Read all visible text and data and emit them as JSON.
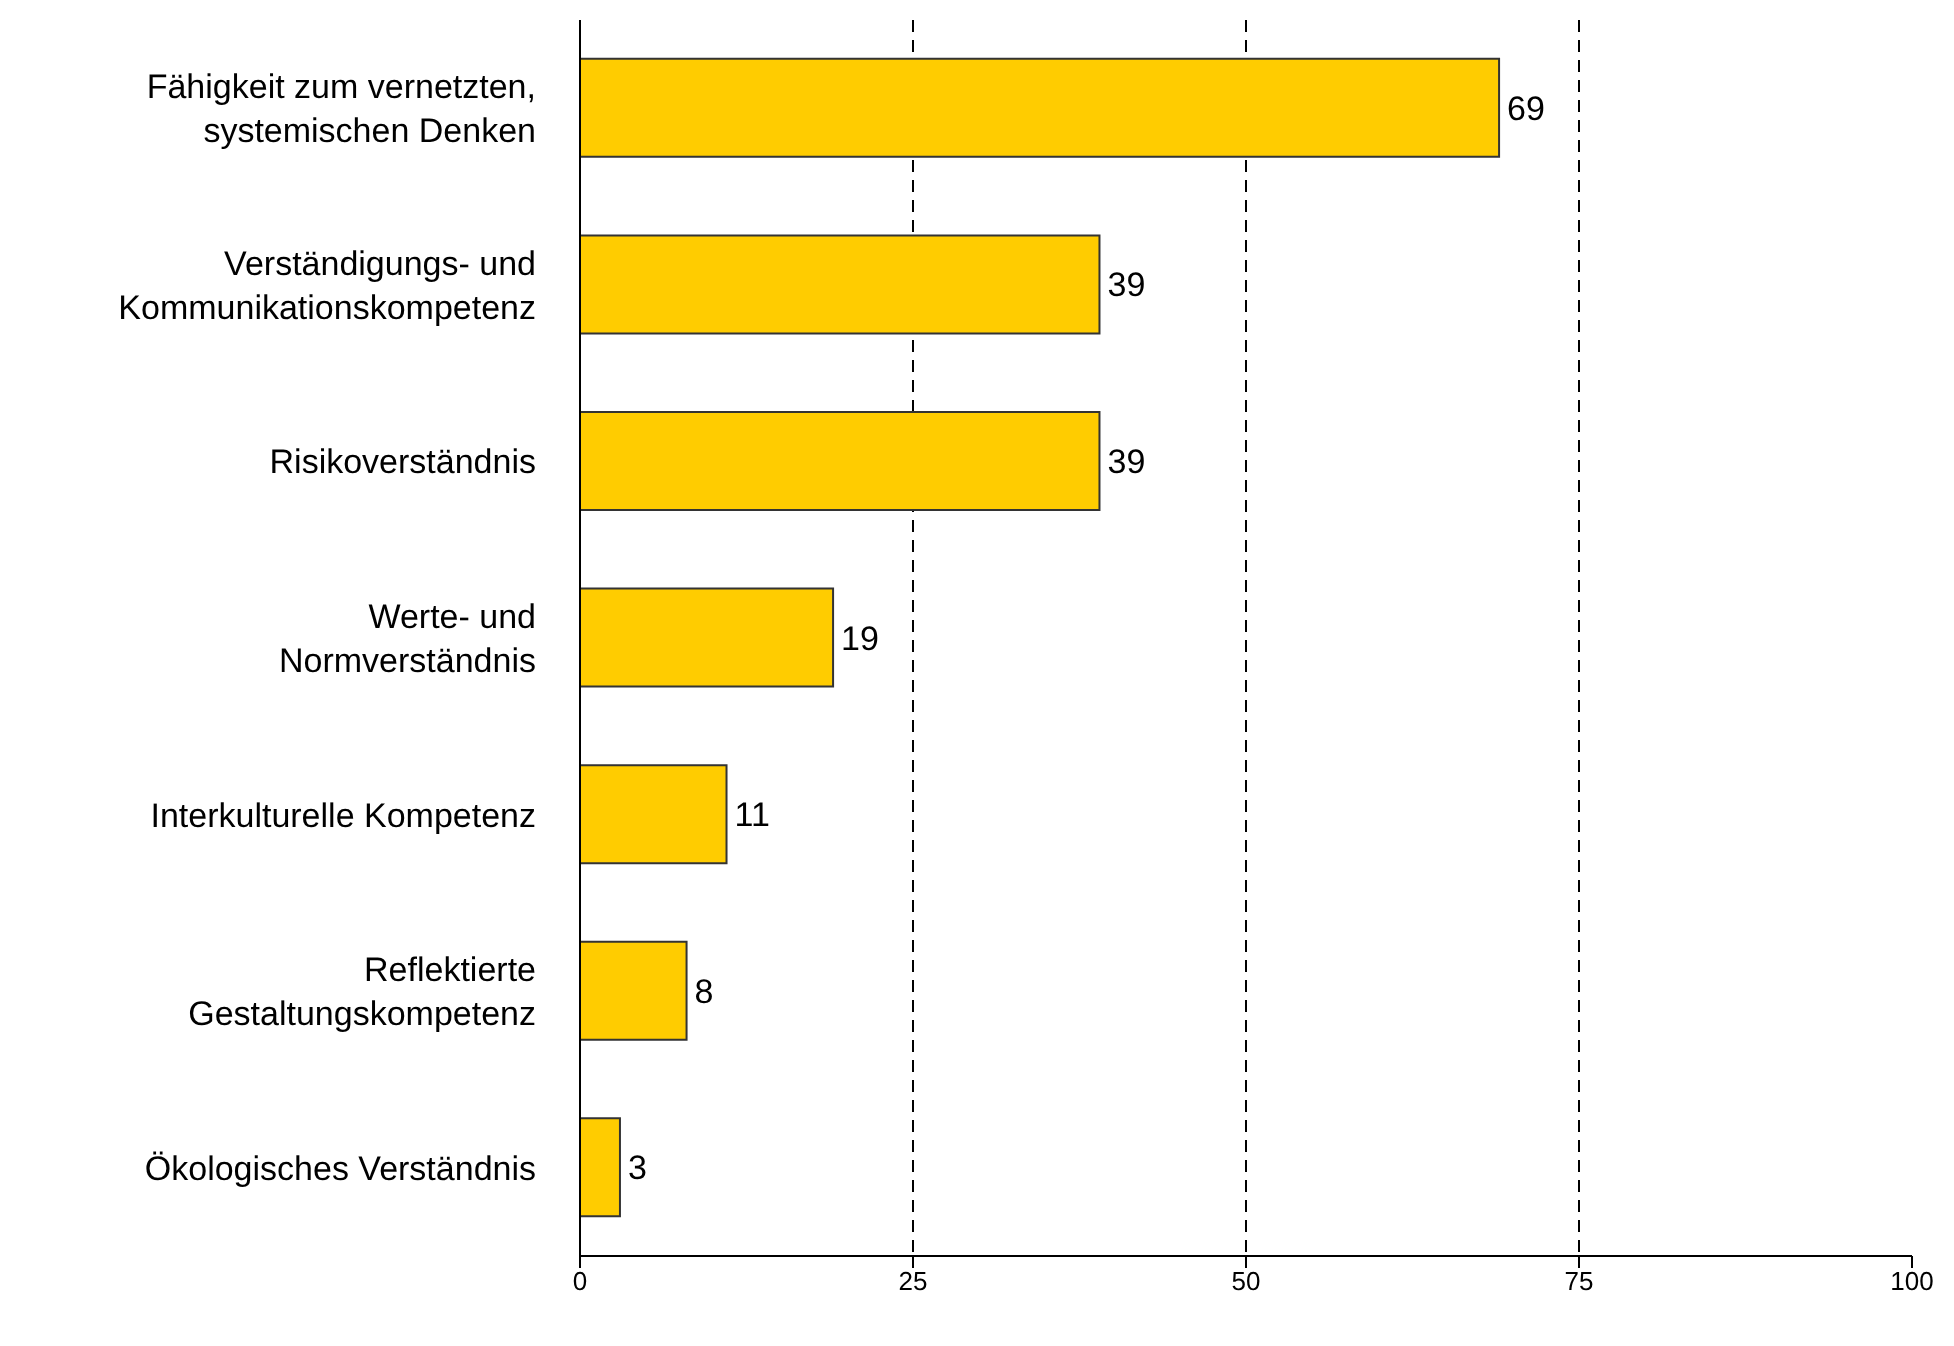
{
  "chart_data": {
    "type": "bar",
    "orientation": "horizontal",
    "categories": [
      "Fähigkeit zum vernetzten,\nsystemischen Denken",
      "Verständigungs- und\nKommunikationskompetenz",
      "Risikoverständnis",
      "Werte- und\nNormverständnis",
      "Interkulturelle Kompetenz",
      "Reflektierte\nGestaltungskompetenz",
      "Ökologisches Verständnis"
    ],
    "values": [
      69,
      39,
      39,
      19,
      11,
      8,
      3
    ],
    "color": "#ffcc00",
    "xlim": [
      0,
      100
    ],
    "xticks": [
      0,
      25,
      50,
      75,
      100
    ],
    "grid": "x",
    "data_labels": true
  }
}
